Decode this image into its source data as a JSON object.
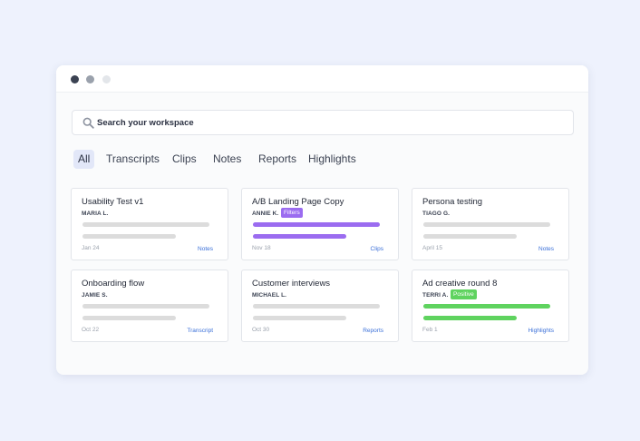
{
  "search": {
    "placeholder": "Search your workspace"
  },
  "tabs": [
    {
      "label": "All",
      "active": true
    },
    {
      "label": "Transcripts"
    },
    {
      "label": "Clips"
    },
    {
      "label": "Notes"
    },
    {
      "label": "Reports"
    },
    {
      "label": "Highlights"
    }
  ],
  "colors": {
    "accent_purple": "#9b6cf0",
    "accent_green": "#5fd35f",
    "bar_gray": "#dcdcdc",
    "link_blue": "#3a6fd8"
  },
  "cards": [
    {
      "title": "Usability Test v1",
      "author": "MARIA L.",
      "date": "Jan 24",
      "link": "Notes",
      "badge": "",
      "bar_color": "#dcdcdc"
    },
    {
      "title": "A/B Landing Page Copy",
      "author": "ANNIE K.",
      "date": "Nov 18",
      "link": "Clips",
      "badge": "Filters",
      "badge_color": "#9b6cf0",
      "bar_color": "#9b6cf0"
    },
    {
      "title": "Persona testing",
      "author": "TIAGO G.",
      "date": "April 15",
      "link": "Notes",
      "badge": "",
      "bar_color": "#dcdcdc"
    },
    {
      "title": "Onboarding flow",
      "author": "JAMIE S.",
      "date": "Oct 22",
      "link": "Transcript",
      "badge": "",
      "bar_color": "#dcdcdc"
    },
    {
      "title": "Customer interviews",
      "author": "MICHAEL L.",
      "date": "Oct 30",
      "link": "Reports",
      "badge": "",
      "bar_color": "#dcdcdc"
    },
    {
      "title": "Ad creative round 8",
      "author": "TERRI A.",
      "date": "Feb 1",
      "link": "Highlights",
      "badge": "Positive",
      "badge_color": "#5fd35f",
      "bar_color": "#5fd35f"
    }
  ]
}
